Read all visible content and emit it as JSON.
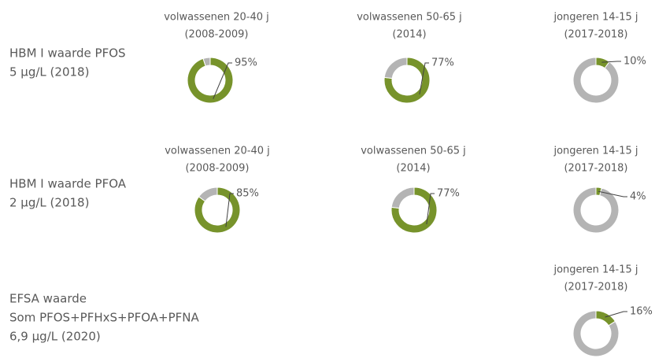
{
  "row_labels": [
    [
      "HBM I waarde PFOS",
      "5 µg/L (2018)"
    ],
    [
      "HBM I waarde PFOA",
      "2 µg/L  (2018)"
    ],
    [
      "EFSA waarde",
      "Som PFOS+PFHxS+PFOA+PFNA",
      "6,9 µg/L (2020)"
    ]
  ],
  "chart_data": [
    {
      "type": "donut",
      "title": "volwassenen 20-40 j",
      "subtitle": "(2008-2009)",
      "values": [
        95,
        5
      ],
      "value_labels": [
        "95%",
        null
      ],
      "colors": [
        "#77932b",
        "#b4b4b4"
      ]
    },
    {
      "type": "donut",
      "title": "volwassenen 50-65 j",
      "subtitle": "(2014)",
      "values": [
        77,
        23
      ],
      "value_labels": [
        "77%",
        null
      ],
      "colors": [
        "#77932b",
        "#b4b4b4"
      ]
    },
    {
      "type": "donut",
      "title": "jongeren 14-15 j",
      "subtitle": "(2017-2018)",
      "values": [
        10,
        90
      ],
      "value_labels": [
        "10%",
        null
      ],
      "colors": [
        "#77932b",
        "#b4b4b4"
      ]
    },
    {
      "type": "donut",
      "title": "volwassenen 20-40 j",
      "subtitle": "(2008-2009)",
      "values": [
        85,
        15
      ],
      "value_labels": [
        "85%",
        null
      ],
      "colors": [
        "#77932b",
        "#b4b4b4"
      ]
    },
    {
      "type": "donut",
      "title": "volwassenen 50-65 j",
      "subtitle": "(2014)",
      "values": [
        77,
        23
      ],
      "value_labels": [
        "77%",
        null
      ],
      "colors": [
        "#77932b",
        "#b4b4b4"
      ]
    },
    {
      "type": "donut",
      "title": "jongeren 14-15 j",
      "subtitle": "(2017-2018)",
      "values": [
        4,
        96
      ],
      "value_labels": [
        "4%",
        null
      ],
      "colors": [
        "#77932b",
        "#b4b4b4"
      ]
    },
    {
      "type": "donut",
      "title": "jongeren 14-15 j",
      "subtitle": "(2017-2018)",
      "values": [
        16,
        84
      ],
      "value_labels": [
        "16%",
        null
      ],
      "colors": [
        "#77932b",
        "#b4b4b4"
      ]
    }
  ]
}
